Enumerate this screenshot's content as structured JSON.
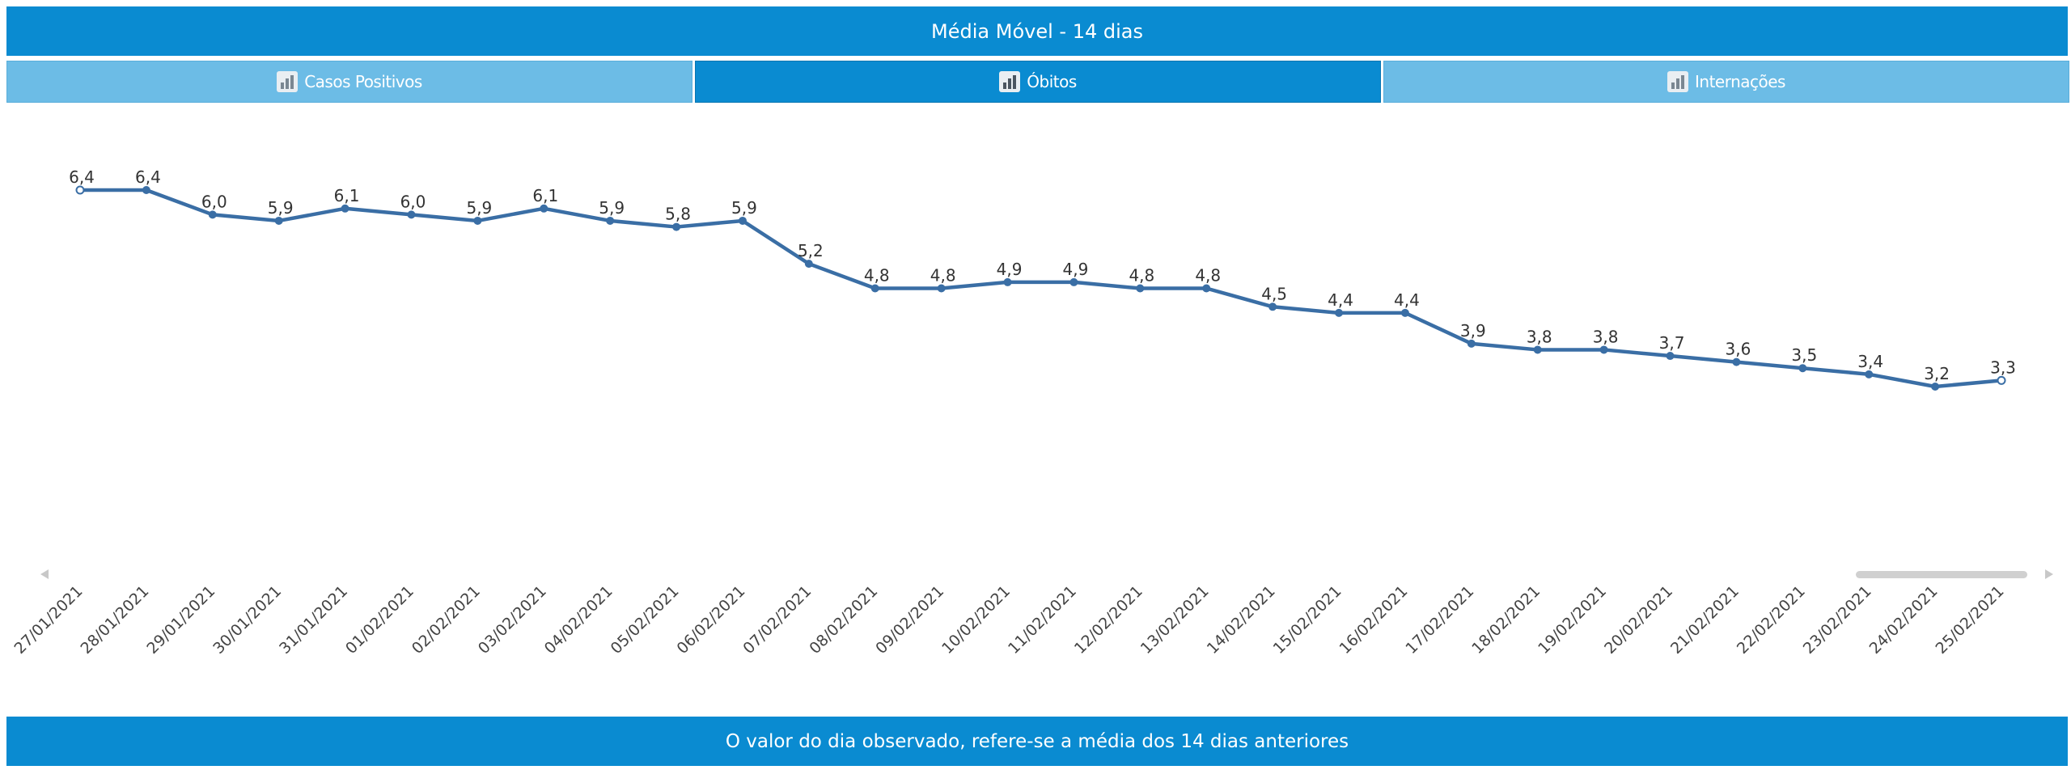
{
  "header": {
    "title": "Média Móvel - 14 dias"
  },
  "tabs": [
    {
      "label": "Casos Positivos",
      "icon": "bar-chart-icon",
      "active": false
    },
    {
      "label": "Óbitos",
      "icon": "bar-chart-icon",
      "active": true
    },
    {
      "label": "Internações",
      "icon": "bar-chart-icon",
      "active": false
    }
  ],
  "footer": {
    "note": "O valor do dia observado, refere-se a média dos 14 dias anteriores"
  },
  "colors": {
    "accent": "#0a8bd1",
    "tab_inactive": "#6cbce6",
    "line": "#3a6ea5"
  },
  "chart_data": {
    "type": "line",
    "title": "",
    "xlabel": "",
    "ylabel": "",
    "grid": false,
    "x": [
      "27/01/2021",
      "28/01/2021",
      "29/01/2021",
      "30/01/2021",
      "31/01/2021",
      "01/02/2021",
      "02/02/2021",
      "03/02/2021",
      "04/02/2021",
      "05/02/2021",
      "06/02/2021",
      "07/02/2021",
      "08/02/2021",
      "09/02/2021",
      "10/02/2021",
      "11/02/2021",
      "12/02/2021",
      "13/02/2021",
      "14/02/2021",
      "15/02/2021",
      "16/02/2021",
      "17/02/2021",
      "18/02/2021",
      "19/02/2021",
      "20/02/2021",
      "21/02/2021",
      "22/02/2021",
      "23/02/2021",
      "24/02/2021",
      "25/02/2021"
    ],
    "series": [
      {
        "values": [
          6.4,
          6.4,
          6.0,
          5.9,
          6.1,
          6.0,
          5.9,
          6.1,
          5.9,
          5.8,
          5.9,
          5.2,
          4.8,
          4.8,
          4.9,
          4.9,
          4.8,
          4.8,
          4.5,
          4.4,
          4.4,
          3.9,
          3.8,
          3.8,
          3.7,
          3.6,
          3.5,
          3.4,
          3.2,
          3.3
        ],
        "labels": [
          "6,4",
          "6,4",
          "6,0",
          "5,9",
          "6,1",
          "6,0",
          "5,9",
          "6,1",
          "5,9",
          "5,8",
          "5,9",
          "5,2",
          "4,8",
          "4,8",
          "4,9",
          "4,9",
          "4,8",
          "4,8",
          "4,5",
          "4,4",
          "4,4",
          "3,9",
          "3,8",
          "3,8",
          "3,7",
          "3,6",
          "3,5",
          "3,4",
          "3,2",
          "3,3"
        ]
      }
    ]
  }
}
